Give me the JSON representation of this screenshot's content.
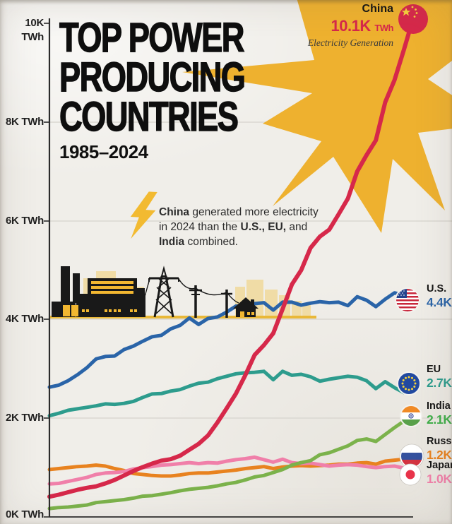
{
  "header": {
    "title_lines": [
      "TOP POWER",
      "PRODUCING",
      "COUNTRIES"
    ],
    "subtitle": "1985–2024"
  },
  "callout": {
    "country": "China",
    "value": "10.1K",
    "unit": "TWh",
    "caption": "Electricity Generation"
  },
  "annotation": {
    "segments": [
      {
        "text": "China ",
        "bold": true
      },
      {
        "text": "generated more electricity in 2024 than the ",
        "bold": false
      },
      {
        "text": "U.S., EU,",
        "bold": true
      },
      {
        "text": " and ",
        "bold": false
      },
      {
        "text": "India",
        "bold": true
      },
      {
        "text": " combined.",
        "bold": false
      }
    ]
  },
  "axis": {
    "y_tick_labels": [
      "10K TWh",
      "8K TWh",
      "6K TWh",
      "4K TWh",
      "2K TWh",
      "0K TWh"
    ],
    "y_tick_values": [
      10,
      8,
      6,
      4,
      2,
      0
    ],
    "x_start_year": 1985,
    "x_end_year": 2024
  },
  "colors": {
    "paper": "#F0EEE9",
    "star_yellow": "#EEB12F",
    "bolt_yellow": "#F2BA31",
    "skyline_tan": "#F0DCA6",
    "ground_gold": "#E9B838",
    "axis": "#2B2B2B",
    "grid": "#DAD7D1",
    "china_red": "#D6284A"
  },
  "chart_data": {
    "type": "line",
    "title": "Top Power Producing Countries",
    "subtitle": "1985–2024",
    "unit": "thousand TWh",
    "ylabel": "Electricity generation (K TWh)",
    "ylim": [
      0,
      10.5
    ],
    "grid": "horizontal gridlines at 2K steps",
    "legend_position": "right edge, at line ends, with flag markers",
    "x_years": [
      1985,
      1986,
      1987,
      1988,
      1989,
      1990,
      1991,
      1992,
      1993,
      1994,
      1995,
      1996,
      1997,
      1998,
      1999,
      2000,
      2001,
      2002,
      2003,
      2004,
      2005,
      2006,
      2007,
      2008,
      2009,
      2010,
      2011,
      2012,
      2013,
      2014,
      2015,
      2016,
      2017,
      2018,
      2019,
      2020,
      2021,
      2022,
      2023,
      2024
    ],
    "draw_order": [
      1,
      2,
      4,
      5,
      3,
      0
    ],
    "series": [
      {
        "id": "china",
        "name": "China",
        "color": "#D6284A",
        "end_label": "10.1K",
        "values": [
          0.41,
          0.45,
          0.5,
          0.55,
          0.59,
          0.62,
          0.68,
          0.75,
          0.84,
          0.93,
          1.01,
          1.08,
          1.14,
          1.17,
          1.24,
          1.36,
          1.48,
          1.65,
          1.91,
          2.2,
          2.5,
          2.87,
          3.28,
          3.48,
          3.72,
          4.21,
          4.71,
          5.0,
          5.45,
          5.68,
          5.82,
          6.13,
          6.45,
          7.0,
          7.33,
          7.63,
          8.4,
          8.85,
          9.46,
          10.1
        ]
      },
      {
        "id": "us",
        "name": "U.S.",
        "color": "#2A64A8",
        "end_label": "4.4K",
        "values": [
          2.63,
          2.67,
          2.76,
          2.88,
          3.02,
          3.2,
          3.25,
          3.26,
          3.39,
          3.46,
          3.56,
          3.65,
          3.68,
          3.81,
          3.88,
          4.03,
          3.9,
          4.02,
          4.05,
          4.15,
          4.27,
          4.28,
          4.32,
          4.34,
          4.19,
          4.35,
          4.35,
          4.29,
          4.33,
          4.36,
          4.34,
          4.35,
          4.28,
          4.46,
          4.39,
          4.26,
          4.41,
          4.54,
          4.49,
          4.4
        ]
      },
      {
        "id": "eu",
        "name": "EU",
        "color": "#2D9C8D",
        "end_label": "2.7K",
        "values": [
          2.05,
          2.1,
          2.16,
          2.19,
          2.22,
          2.25,
          2.29,
          2.28,
          2.3,
          2.34,
          2.42,
          2.49,
          2.5,
          2.55,
          2.58,
          2.65,
          2.71,
          2.73,
          2.8,
          2.85,
          2.9,
          2.92,
          2.93,
          2.95,
          2.78,
          2.95,
          2.87,
          2.89,
          2.84,
          2.75,
          2.79,
          2.82,
          2.85,
          2.83,
          2.76,
          2.6,
          2.74,
          2.62,
          2.52,
          2.7
        ]
      },
      {
        "id": "india",
        "name": "India",
        "color": "#7BB24B",
        "label_color": "#3FAE49",
        "end_label": "2.1K",
        "values": [
          0.17,
          0.19,
          0.2,
          0.22,
          0.24,
          0.29,
          0.31,
          0.33,
          0.35,
          0.38,
          0.42,
          0.43,
          0.46,
          0.49,
          0.53,
          0.56,
          0.58,
          0.6,
          0.63,
          0.67,
          0.7,
          0.75,
          0.81,
          0.84,
          0.9,
          0.96,
          1.05,
          1.1,
          1.14,
          1.26,
          1.3,
          1.37,
          1.44,
          1.55,
          1.58,
          1.53,
          1.67,
          1.81,
          1.94,
          2.1
        ]
      },
      {
        "id": "russia",
        "name": "Russia",
        "color": "#E8821F",
        "end_label": "1.2K",
        "values": [
          0.96,
          0.98,
          1.0,
          1.02,
          1.03,
          1.05,
          1.03,
          0.98,
          0.94,
          0.88,
          0.86,
          0.84,
          0.83,
          0.83,
          0.85,
          0.88,
          0.89,
          0.89,
          0.91,
          0.93,
          0.95,
          0.98,
          1.0,
          1.02,
          0.98,
          1.01,
          1.03,
          1.04,
          1.03,
          1.04,
          1.05,
          1.07,
          1.07,
          1.09,
          1.1,
          1.07,
          1.13,
          1.15,
          1.17,
          1.2
        ]
      },
      {
        "id": "japan",
        "name": "Japan",
        "color": "#F07FA9",
        "end_label": "1.0K",
        "values": [
          0.67,
          0.68,
          0.72,
          0.76,
          0.8,
          0.86,
          0.89,
          0.9,
          0.92,
          0.97,
          1.0,
          1.02,
          1.05,
          1.06,
          1.08,
          1.1,
          1.08,
          1.1,
          1.09,
          1.13,
          1.16,
          1.18,
          1.21,
          1.16,
          1.11,
          1.17,
          1.1,
          1.08,
          1.09,
          1.06,
          1.03,
          1.05,
          1.06,
          1.05,
          1.02,
          1.0,
          1.02,
          1.03,
          0.99,
          1.0
        ]
      }
    ]
  }
}
